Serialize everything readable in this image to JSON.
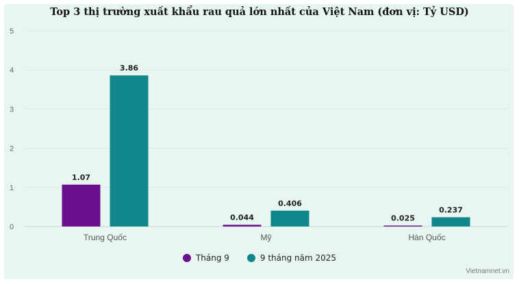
{
  "chart_data": {
    "type": "bar",
    "title": "Top 3 thị trường xuất khẩu rau quả lớn nhất của Việt Nam (đơn vị: Tỷ USD)",
    "categories": [
      "Trung Quốc",
      "Mỹ",
      "Hàn Quốc"
    ],
    "series": [
      {
        "name": "Tháng 9",
        "color": "#6a0f8e",
        "values": [
          1.07,
          0.044,
          0.025
        ],
        "labels": [
          "1.07",
          "0.044",
          "0.025"
        ]
      },
      {
        "name": "9 tháng năm 2025",
        "color": "#12878b",
        "values": [
          3.86,
          0.406,
          0.237
        ],
        "labels": [
          "3.86",
          "0.406",
          "0.237"
        ]
      }
    ],
    "ylim": [
      0,
      5
    ],
    "yticks": [
      "0",
      "1",
      "2",
      "3",
      "4",
      "5"
    ],
    "grid": true,
    "legend_position": "bottom-center"
  },
  "credit": "Vietnamnet.vn"
}
